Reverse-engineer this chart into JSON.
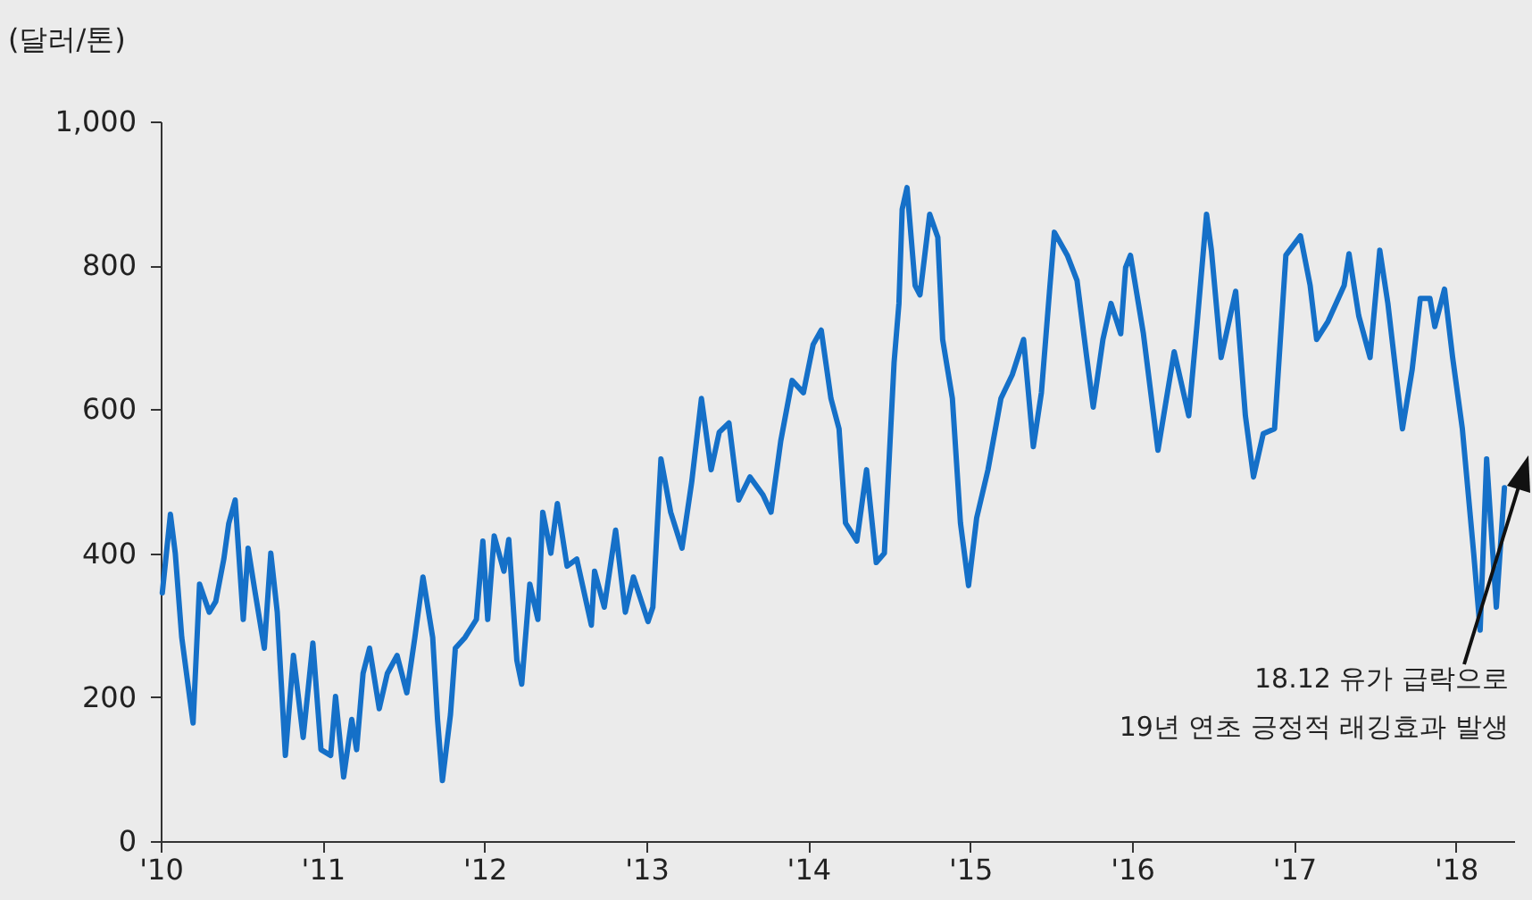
{
  "chart_data": {
    "type": "line",
    "ylabel": "(달러/톤)",
    "x": [
      2010.01,
      2010.06,
      2010.09,
      2010.13,
      2010.2,
      2010.24,
      2010.3,
      2010.34,
      2010.39,
      2010.42,
      2010.46,
      2010.51,
      2010.54,
      2010.58,
      2010.64,
      2010.68,
      2010.72,
      2010.77,
      2010.82,
      2010.88,
      2010.94,
      2010.99,
      2011.05,
      2011.08,
      2011.13,
      2011.18,
      2011.21,
      2011.25,
      2011.29,
      2011.35,
      2011.4,
      2011.46,
      2011.52,
      2011.57,
      2011.62,
      2011.68,
      2011.71,
      2011.74,
      2011.79,
      2011.82,
      2011.88,
      2011.95,
      2011.99,
      2012.02,
      2012.06,
      2012.12,
      2012.15,
      2012.2,
      2012.23,
      2012.28,
      2012.33,
      2012.36,
      2012.41,
      2012.45,
      2012.51,
      2012.57,
      2012.66,
      2012.68,
      2012.74,
      2012.81,
      2012.87,
      2012.92,
      2013.01,
      2013.04,
      2013.09,
      2013.15,
      2013.22,
      2013.28,
      2013.34,
      2013.4,
      2013.45,
      2013.51,
      2013.57,
      2013.64,
      2013.72,
      2013.77,
      2013.83,
      2013.9,
      2013.97,
      2014.03,
      2014.08,
      2014.14,
      2014.19,
      2014.23,
      2014.3,
      2014.36,
      2014.42,
      2014.47,
      2014.53,
      2014.56,
      2014.58,
      2014.61,
      2014.66,
      2014.69,
      2014.75,
      2014.8,
      2014.83,
      2014.89,
      2014.94,
      2014.99,
      2015.04,
      2015.11,
      2015.19,
      2015.26,
      2015.33,
      2015.39,
      2015.44,
      2015.49,
      2015.52,
      2015.6,
      2015.66,
      2015.72,
      2015.76,
      2015.82,
      2015.87,
      2015.93,
      2015.96,
      2015.99,
      2016.07,
      2016.16,
      2016.26,
      2016.35,
      2016.4,
      2016.46,
      2016.49,
      2016.55,
      2016.64,
      2016.7,
      2016.75,
      2016.81,
      2016.88,
      2016.95,
      2017.04,
      2017.1,
      2017.14,
      2017.21,
      2017.31,
      2017.34,
      2017.4,
      2017.47,
      2017.53,
      2017.58,
      2017.67,
      2017.73,
      2017.78,
      2017.84,
      2017.87,
      2017.93,
      2017.98,
      2018.04,
      2018.11,
      2018.15,
      2018.19,
      2018.25,
      2018.3
    ],
    "series": [
      {
        "color": "#1570c8",
        "values": [
          345,
          454,
          400,
          283,
          164,
          357,
          318,
          333,
          392,
          441,
          474,
          308,
          407,
          350,
          268,
          400,
          318,
          119,
          258,
          144,
          275,
          127,
          119,
          201,
          89,
          169,
          127,
          233,
          268,
          184,
          233,
          258,
          206,
          283,
          367,
          283,
          169,
          84,
          176,
          268,
          283,
          308,
          417,
          308,
          424,
          375,
          419,
          251,
          218,
          357,
          308,
          457,
          400,
          469,
          382,
          392,
          300,
          375,
          325,
          432,
          318,
          367,
          305,
          325,
          531,
          457,
          407,
          499,
          615,
          516,
          568,
          581,
          474,
          506,
          481,
          457,
          556,
          640,
          623,
          690,
          710,
          615,
          573,
          442,
          417,
          516,
          387,
          400,
          665,
          747,
          878,
          908,
          772,
          759,
          871,
          839,
          697,
          615,
          442,
          355,
          449,
          516,
          615,
          648,
          697,
          548,
          623,
          764,
          846,
          814,
          779,
          672,
          603,
          697,
          747,
          705,
          797,
          814,
          705,
          543,
          680,
          591,
          715,
          871,
          821,
          672,
          764,
          591,
          506,
          566,
          573,
          814,
          841,
          772,
          697,
          722,
          772,
          816,
          730,
          672,
          821,
          747,
          573,
          655,
          754,
          754,
          715,
          767,
          672,
          573,
          400,
          293,
          531,
          325,
          491
        ]
      }
    ],
    "xlim": [
      2010,
      2018.36
    ],
    "xticks": [
      {
        "value": 2010,
        "label": "'10"
      },
      {
        "value": 2011,
        "label": "'11"
      },
      {
        "value": 2012,
        "label": "'12"
      },
      {
        "value": 2013,
        "label": "'13"
      },
      {
        "value": 2014,
        "label": "'14"
      },
      {
        "value": 2015,
        "label": "'15"
      },
      {
        "value": 2016,
        "label": "'16"
      },
      {
        "value": 2017,
        "label": "'17"
      },
      {
        "value": 2018,
        "label": "'18"
      }
    ],
    "ylim": [
      0,
      1000
    ],
    "yticks": [
      0,
      200,
      400,
      600,
      800,
      {
        "value": 1000,
        "label": "1,000"
      }
    ],
    "grid": false,
    "line_style": "solid",
    "marker": "none",
    "annotations": [
      "18.12 유가 급락으로\n19년 연초 긍정적 래깅효과 발생"
    ]
  }
}
